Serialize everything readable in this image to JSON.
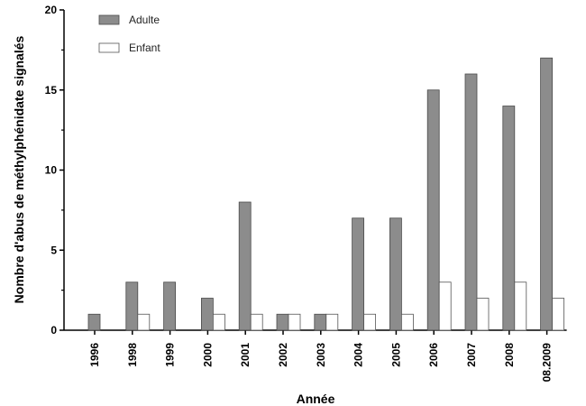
{
  "chart_data": {
    "type": "bar",
    "xlabel": "Année",
    "ylabel": "Nombre d'abus de méthylphénidate signalés",
    "ylim": [
      0,
      20
    ],
    "yticks": [
      "0",
      "5",
      "10",
      "15",
      "20"
    ],
    "categories": [
      "1996",
      "1998",
      "1999",
      "2000",
      "2001",
      "2002",
      "2003",
      "2004",
      "2005",
      "2006",
      "2007",
      "2008",
      "08.2009"
    ],
    "series": [
      {
        "name": "Adulte",
        "color": "#8c8c8c",
        "values": [
          1,
          3,
          3,
          2,
          8,
          1,
          1,
          7,
          7,
          15,
          16,
          14,
          17
        ]
      },
      {
        "name": "Enfant",
        "color": "#ffffff",
        "values": [
          0,
          1,
          0,
          1,
          1,
          1,
          1,
          1,
          1,
          3,
          2,
          3,
          2
        ]
      }
    ],
    "legend_position": "top-left",
    "grid": false
  }
}
